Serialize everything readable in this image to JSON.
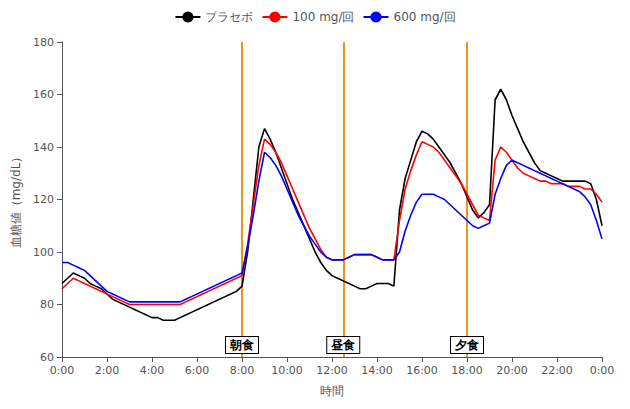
{
  "chart_data": {
    "type": "line",
    "xlabel": "時間",
    "ylabel": "血糖値（mg/dL）",
    "x": [
      0.0,
      0.25,
      0.5,
      0.75,
      1.0,
      1.25,
      1.5,
      1.75,
      2.0,
      2.25,
      2.5,
      2.75,
      3.0,
      3.25,
      3.5,
      3.75,
      4.0,
      4.25,
      4.5,
      4.75,
      5.0,
      5.25,
      5.5,
      5.75,
      6.0,
      6.25,
      6.5,
      6.75,
      7.0,
      7.25,
      7.5,
      7.75,
      8.0,
      8.25,
      8.5,
      8.75,
      9.0,
      9.25,
      9.5,
      9.75,
      10.0,
      10.25,
      10.5,
      10.75,
      11.0,
      11.25,
      11.5,
      11.75,
      12.0,
      12.25,
      12.5,
      12.75,
      13.0,
      13.25,
      13.5,
      13.75,
      14.0,
      14.25,
      14.5,
      14.75,
      15.0,
      15.25,
      15.5,
      15.75,
      16.0,
      16.25,
      16.5,
      16.75,
      17.0,
      17.25,
      17.5,
      17.75,
      18.0,
      18.25,
      18.5,
      18.75,
      19.0,
      19.25,
      19.5,
      19.75,
      20.0,
      20.25,
      20.5,
      20.75,
      21.0,
      21.25,
      21.5,
      21.75,
      22.0,
      22.25,
      22.5,
      22.75,
      23.0,
      23.25,
      23.5,
      23.75,
      24.0
    ],
    "series": [
      {
        "name": "プラセボ",
        "color": "black",
        "values": [
          88,
          90,
          92,
          91,
          90,
          88,
          87,
          86,
          84,
          82,
          81,
          80,
          79,
          78,
          77,
          76,
          75,
          75,
          74,
          74,
          74,
          75,
          76,
          77,
          78,
          79,
          80,
          81,
          82,
          83,
          84,
          85,
          87,
          100,
          120,
          140,
          147,
          143,
          138,
          132,
          126,
          120,
          115,
          110,
          105,
          100,
          96,
          93,
          91,
          90,
          89,
          88,
          87,
          86,
          86,
          87,
          88,
          88,
          88,
          87,
          116,
          128,
          135,
          142,
          146,
          145,
          143,
          140,
          137,
          134,
          130,
          126,
          121,
          116,
          113,
          115,
          118,
          158,
          162,
          158,
          152,
          147,
          142,
          138,
          134,
          131,
          130,
          129,
          128,
          127,
          127,
          127,
          127,
          127,
          126,
          120,
          110
        ]
      },
      {
        "name": "100 mg/回",
        "color": "red",
        "values": [
          86,
          88,
          90,
          89,
          88,
          87,
          86,
          85,
          84,
          83,
          82,
          81,
          80,
          80,
          80,
          80,
          80,
          80,
          80,
          80,
          80,
          80,
          81,
          82,
          83,
          84,
          85,
          86,
          87,
          88,
          89,
          90,
          91,
          103,
          118,
          133,
          143,
          141,
          138,
          134,
          129,
          124,
          119,
          114,
          109,
          105,
          101,
          98,
          97,
          97,
          97,
          98,
          99,
          99,
          99,
          99,
          98,
          97,
          97,
          97,
          112,
          124,
          131,
          137,
          142,
          141,
          140,
          138,
          135,
          132,
          129,
          126,
          122,
          118,
          114,
          113,
          112,
          135,
          140,
          138,
          135,
          132,
          130,
          129,
          128,
          127,
          127,
          126,
          126,
          126,
          125,
          125,
          125,
          124,
          124,
          122,
          119
        ]
      },
      {
        "name": "600 mg/回",
        "color": "blue",
        "values": [
          96,
          96,
          95,
          94,
          93,
          91,
          89,
          87,
          85,
          84,
          83,
          82,
          81,
          81,
          81,
          81,
          81,
          81,
          81,
          81,
          81,
          81,
          82,
          83,
          84,
          85,
          86,
          87,
          88,
          89,
          90,
          91,
          92,
          102,
          114,
          127,
          138,
          136,
          133,
          129,
          124,
          119,
          114,
          110,
          106,
          103,
          100,
          98,
          97,
          97,
          97,
          98,
          99,
          99,
          99,
          99,
          98,
          97,
          97,
          97,
          100,
          108,
          114,
          119,
          122,
          122,
          122,
          121,
          120,
          118,
          116,
          114,
          112,
          110,
          109,
          110,
          111,
          122,
          128,
          133,
          135,
          134,
          133,
          132,
          131,
          130,
          129,
          128,
          127,
          126,
          125,
          124,
          123,
          121,
          118,
          112,
          105
        ]
      }
    ],
    "annotations": [
      {
        "x": 8.0,
        "text": "朝食",
        "color": "#E8961E"
      },
      {
        "x": 12.5,
        "text": "昼食",
        "color": "#E8961E"
      },
      {
        "x": 18.0,
        "text": "夕食",
        "color": "#E8961E"
      }
    ],
    "xlim": [
      0,
      24
    ],
    "xticks": [
      {
        "value": 0,
        "label": "0:00"
      },
      {
        "value": 2,
        "label": "2:00"
      },
      {
        "value": 4,
        "label": "4:00"
      },
      {
        "value": 6,
        "label": "6:00"
      },
      {
        "value": 8,
        "label": "8:00"
      },
      {
        "value": 10,
        "label": "10:00"
      },
      {
        "value": 12,
        "label": "12:00"
      },
      {
        "value": 14,
        "label": "14:00"
      },
      {
        "value": 16,
        "label": "16:00"
      },
      {
        "value": 18,
        "label": "18:00"
      },
      {
        "value": 20,
        "label": "20:00"
      },
      {
        "value": 22,
        "label": "22:00"
      },
      {
        "value": 24,
        "label": "0:00"
      }
    ],
    "ylim": [
      60,
      180
    ],
    "yticks": [
      60,
      80,
      100,
      120,
      140,
      160,
      180
    ],
    "grid": false,
    "legend": "top"
  }
}
